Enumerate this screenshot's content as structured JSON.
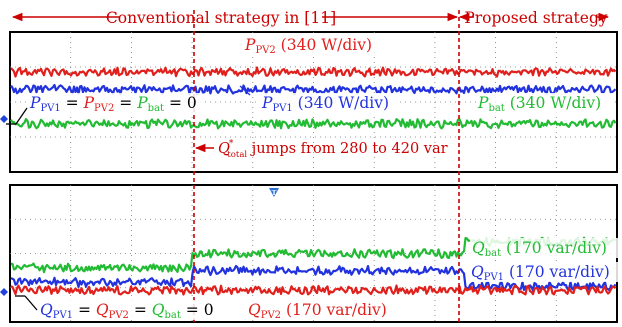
{
  "strategies": {
    "conventional": "Conventional strategy in [11]",
    "proposed": "Proposed strategy"
  },
  "event_label": {
    "symbol": "Q",
    "sup": "*",
    "sub": "total",
    "text": " jumps from 280 to 420 var"
  },
  "trigger_marker": "T",
  "colors": {
    "grid": "#7a7a7a",
    "frame": "#000000",
    "red": "#e0201c",
    "blue": "#2233dd",
    "green": "#22bb33",
    "annotation_red": "#cc0000",
    "marker_blue": "#2a6fd6"
  },
  "chart_data": [
    {
      "type": "line",
      "panel": "top",
      "subject": "active power",
      "grid": true,
      "annotations": [
        {
          "text_parts": [
            [
              "P",
              "#e0201c"
            ],
            [
              "PV2",
              "#e0201c",
              "sub"
            ],
            [
              " (340 W/div)",
              "#e0201c"
            ]
          ]
        },
        {
          "text_parts": [
            [
              "P",
              "#2233dd"
            ],
            [
              "PV1",
              "#2233dd",
              "sub"
            ],
            [
              " (340 W/div)",
              "#2233dd"
            ]
          ]
        },
        {
          "text_parts": [
            [
              "P",
              "#22bb33"
            ],
            [
              "bat",
              "#22bb33",
              "sub"
            ],
            [
              " (340 W/div)",
              "#22bb33"
            ]
          ]
        },
        {
          "text_parts": [
            [
              "P",
              "#2233dd"
            ],
            [
              "PV1",
              "#2233dd",
              "sub"
            ],
            [
              " = ",
              "#000000"
            ],
            [
              "P",
              "#e0201c"
            ],
            [
              "PV2",
              "#e0201c",
              "sub"
            ],
            [
              " = ",
              "#000000"
            ],
            [
              "P",
              "#22bb33"
            ],
            [
              "bat",
              "#22bb33",
              "sub"
            ],
            [
              " = 0",
              "#000000"
            ]
          ]
        }
      ],
      "series": [
        {
          "name": "P_PV2",
          "color": "#e0201c",
          "segments": [
            {
              "to": 1.0,
              "level": 2.5
            }
          ]
        },
        {
          "name": "P_PV1",
          "color": "#2233dd",
          "segments": [
            {
              "to": 1.0,
              "level": 1.7
            }
          ]
        },
        {
          "name": "P_bat",
          "color": "#22bb33",
          "segments": [
            {
              "to": 1.0,
              "level": 0.15
            }
          ]
        }
      ]
    },
    {
      "type": "line",
      "panel": "bottom",
      "subject": "reactive power",
      "grid": true,
      "annotations": [
        {
          "text_parts": [
            [
              "Q",
              "#22bb33"
            ],
            [
              "bat",
              "#22bb33",
              "sub"
            ],
            [
              " (170 var/div)",
              "#22bb33"
            ]
          ]
        },
        {
          "text_parts": [
            [
              "Q",
              "#2233dd"
            ],
            [
              "PV1",
              "#2233dd",
              "sub"
            ],
            [
              " (170 var/div)",
              "#2233dd"
            ]
          ]
        },
        {
          "text_parts": [
            [
              "Q",
              "#e0201c"
            ],
            [
              "PV2",
              "#e0201c",
              "sub"
            ],
            [
              " (170 var/div)",
              "#e0201c"
            ]
          ]
        },
        {
          "text_parts": [
            [
              "Q",
              "#2233dd"
            ],
            [
              "PV1",
              "#2233dd",
              "sub"
            ],
            [
              " = ",
              "#000000"
            ],
            [
              "Q",
              "#e0201c"
            ],
            [
              "PV2",
              "#e0201c",
              "sub"
            ],
            [
              " = ",
              "#000000"
            ],
            [
              "Q",
              "#22bb33"
            ],
            [
              "bat",
              "#22bb33",
              "sub"
            ],
            [
              " = 0",
              "#000000"
            ]
          ]
        }
      ],
      "series": [
        {
          "name": "Q_bat",
          "color": "#22bb33",
          "segments": [
            {
              "to": 0.3,
              "level": 1.0
            },
            {
              "to": 0.75,
              "level": 1.55
            },
            {
              "to": 1.0,
              "level": 2.0
            }
          ]
        },
        {
          "name": "Q_PV1",
          "color": "#2233dd",
          "segments": [
            {
              "to": 0.3,
              "level": 0.45
            },
            {
              "to": 0.75,
              "level": 0.9
            },
            {
              "to": 1.0,
              "level": 0.3
            }
          ]
        },
        {
          "name": "Q_PV2",
          "color": "#e0201c",
          "segments": [
            {
              "to": 0.3,
              "level": 0.15
            },
            {
              "to": 0.75,
              "level": 0.15
            },
            {
              "to": 1.0,
              "level": 0.15
            }
          ]
        }
      ]
    }
  ]
}
